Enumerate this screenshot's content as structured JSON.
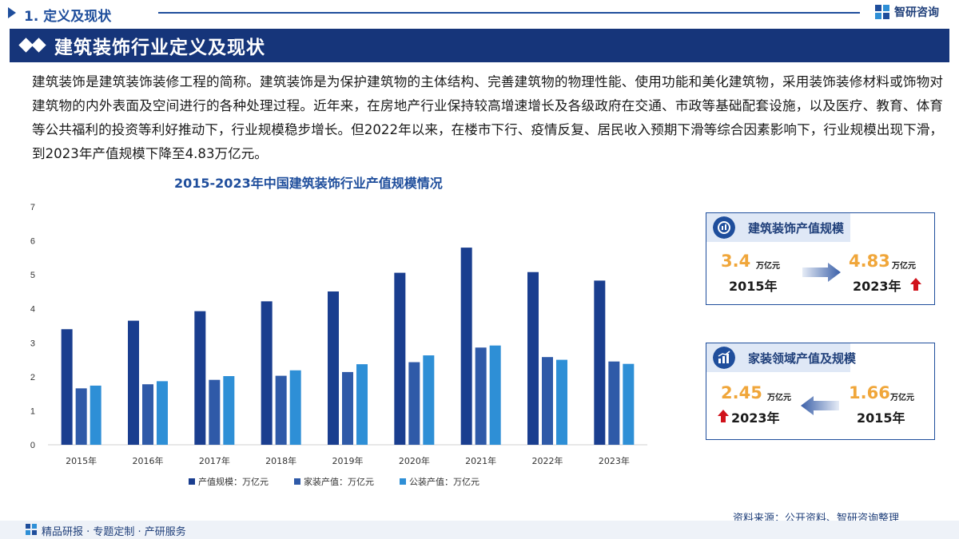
{
  "section": {
    "title": "1. 定义及现状"
  },
  "logo": {
    "text": "智研咨询"
  },
  "banner": {
    "title": "建筑装饰行业定义及现状"
  },
  "intro": "建筑装饰是建筑装饰装修工程的简称。建筑装饰是为保护建筑物的主体结构、完善建筑物的物理性能、使用功能和美化建筑物，采用装饰装修材料或饰物对建筑物的内外表面及空间进行的各种处理过程。近年来，在房地产行业保持较高增速增长及各级政府在交通、市政等基础配套设施，以及医疗、教育、体育等公共福利的投资等利好推动下，行业规模稳步增长。但2022年以来，在楼市下行、疫情反复、居民收入预期下滑等综合因素影响下，行业规模出现下滑，到2023年产值规模下降至4.83万亿元。",
  "chart_data": {
    "type": "bar",
    "title": "2015-2023年中国建筑装饰行业产值规模情况",
    "categories": [
      "2015年",
      "2016年",
      "2017年",
      "2018年",
      "2019年",
      "2020年",
      "2021年",
      "2022年",
      "2023年"
    ],
    "series": [
      {
        "name": "产值规模：万亿元",
        "color": "#1a3e8f",
        "values": [
          3.4,
          3.65,
          3.93,
          4.22,
          4.51,
          5.06,
          5.8,
          5.08,
          4.83
        ]
      },
      {
        "name": "家装产值：万亿元",
        "color": "#2f5aa8",
        "values": [
          1.66,
          1.78,
          1.91,
          2.03,
          2.14,
          2.43,
          2.86,
          2.58,
          2.45
        ]
      },
      {
        "name": "公装产值：万亿元",
        "color": "#2e8fd6",
        "values": [
          1.74,
          1.87,
          2.02,
          2.19,
          2.37,
          2.63,
          2.92,
          2.5,
          2.38
        ]
      }
    ],
    "ylim": [
      0,
      7
    ],
    "yticks": [
      "0",
      "1",
      "2",
      "3",
      "4",
      "5",
      "6",
      "7"
    ],
    "grid": false,
    "legend": "bottom"
  },
  "card1": {
    "title": "建筑装饰产值规模",
    "left_value": "3.4",
    "left_unit": "万亿元",
    "left_year": "2015年",
    "right_value": "4.83",
    "right_unit": "万亿元",
    "right_year": "2023年"
  },
  "card2": {
    "title": "家装领域产值及规模",
    "left_value": "2.45",
    "left_unit": "万亿元",
    "left_year": "2023年",
    "right_value": "1.66",
    "right_unit": "万亿元",
    "right_year": "2015年"
  },
  "source": "资料来源：公开资料、智研咨询整理",
  "footer": "精品研报 · 专题定制 · 产研服务",
  "colors": {
    "brand": "#1f4e9c",
    "banner": "#16357a",
    "accent_value": "#f0a63a",
    "up_arrow": "#d0121b"
  }
}
